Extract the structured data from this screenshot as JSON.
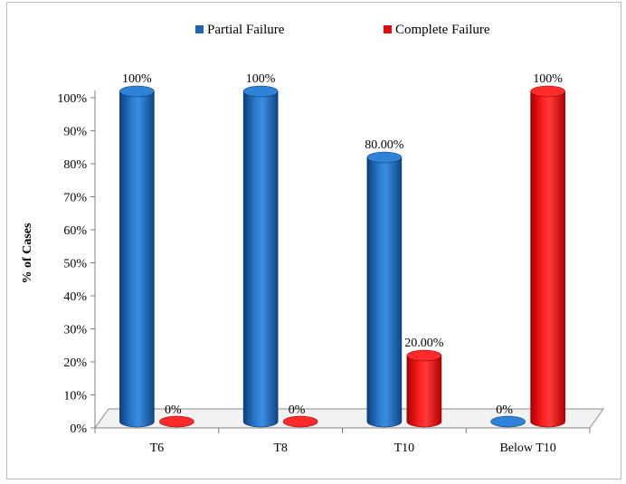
{
  "chart_data": {
    "type": "bar",
    "style": "3d-cylinder",
    "categories": [
      "T6",
      "T8",
      "T10",
      "Below T10"
    ],
    "series": [
      {
        "name": "Partial Failure",
        "color": "#1f64b4",
        "values": [
          100,
          100,
          80,
          0
        ],
        "labels": [
          "100%",
          "100%",
          "80.00%",
          "0%"
        ]
      },
      {
        "name": "Complete Failure",
        "color": "#e80b0b",
        "values": [
          0,
          0,
          20,
          100
        ],
        "labels": [
          "0%",
          "0%",
          "20.00%",
          "100%"
        ]
      }
    ],
    "ylabel": "% of Cases",
    "xlabel": "",
    "title": "",
    "ylim": [
      0,
      100
    ],
    "yticks": [
      "0%",
      "10%",
      "20%",
      "30%",
      "40%",
      "50%",
      "60%",
      "70%",
      "80%",
      "90%",
      "100%"
    ],
    "legend_position": "top",
    "grid": false
  }
}
